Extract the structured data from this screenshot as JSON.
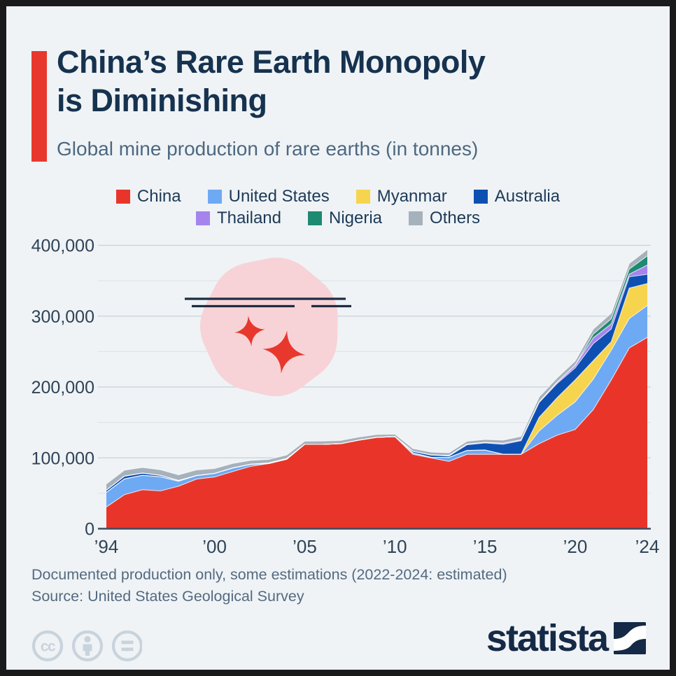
{
  "header": {
    "title_line1": "China’s Rare Earth Monopoly",
    "title_line2": "is Diminishing",
    "subtitle": "Global mine production of rare earths (in tonnes)",
    "accent_color": "#e8382d"
  },
  "legend": {
    "row_break": 4
  },
  "chart_data": {
    "type": "area",
    "stacked": true,
    "title": "Global mine production of rare earths (in tonnes)",
    "unit": "tonnes",
    "ylim": [
      0,
      400000
    ],
    "grid": "horizontal, minor lines every 50,000",
    "legend_position": "top-center, two rows",
    "years": [
      1994,
      1995,
      1996,
      1997,
      1998,
      1999,
      2000,
      2001,
      2002,
      2003,
      2004,
      2005,
      2006,
      2007,
      2008,
      2009,
      2010,
      2011,
      2012,
      2013,
      2014,
      2015,
      2016,
      2017,
      2018,
      2019,
      2020,
      2021,
      2022,
      2023,
      2024
    ],
    "series": [
      {
        "name": "China",
        "color": "#e93529",
        "values": [
          30600,
          48000,
          55000,
          53300,
          60000,
          70000,
          73000,
          80600,
          88000,
          92000,
          98000,
          119000,
          119000,
          120000,
          125000,
          129000,
          130000,
          105000,
          100000,
          95000,
          105000,
          105000,
          105000,
          105000,
          120000,
          132000,
          140000,
          168000,
          210000,
          255000,
          270000
        ]
      },
      {
        "name": "United States",
        "color": "#6ea9f3",
        "values": [
          20700,
          22200,
          20400,
          20000,
          7000,
          5000,
          5000,
          5000,
          3000,
          0,
          0,
          0,
          0,
          0,
          0,
          0,
          0,
          2000,
          800,
          5500,
          5400,
          5900,
          0,
          0,
          18000,
          28000,
          39000,
          43000,
          42000,
          41600,
          45000
        ]
      },
      {
        "name": "Myanmar",
        "color": "#f6d44e",
        "values": [
          0,
          0,
          0,
          0,
          0,
          0,
          0,
          0,
          0,
          0,
          0,
          0,
          0,
          0,
          0,
          0,
          0,
          0,
          0,
          0,
          0,
          100,
          0,
          100,
          19000,
          25000,
          31000,
          26000,
          12000,
          43000,
          31000
        ]
      },
      {
        "name": "Australia",
        "color": "#0d50b2",
        "values": [
          3000,
          4000,
          3000,
          2000,
          1000,
          0,
          0,
          0,
          0,
          0,
          0,
          0,
          0,
          0,
          0,
          0,
          0,
          2200,
          3200,
          2000,
          8000,
          10000,
          14000,
          19000,
          21000,
          20000,
          17000,
          24000,
          18000,
          16000,
          13000
        ]
      },
      {
        "name": "Thailand",
        "color": "#a584ee",
        "values": [
          0,
          0,
          0,
          0,
          0,
          0,
          0,
          0,
          0,
          800,
          1100,
          0,
          0,
          0,
          0,
          0,
          0,
          0,
          100,
          800,
          1100,
          800,
          1600,
          1300,
          1000,
          1900,
          3600,
          8200,
          7100,
          3600,
          13000
        ]
      },
      {
        "name": "Nigeria",
        "color": "#1d8a72",
        "values": [
          0,
          0,
          0,
          0,
          0,
          0,
          0,
          0,
          0,
          0,
          0,
          0,
          0,
          0,
          0,
          0,
          0,
          0,
          0,
          0,
          0,
          0,
          0,
          0,
          0,
          0,
          0,
          5400,
          7200,
          7200,
          13000
        ]
      },
      {
        "name": "Others",
        "color": "#a6b2bb",
        "values": [
          9000,
          8500,
          8000,
          8000,
          8000,
          8000,
          7000,
          6500,
          5500,
          5000,
          5000,
          4600,
          4800,
          4600,
          4500,
          4000,
          3500,
          4000,
          4000,
          4000,
          4000,
          4200,
          4400,
          5000,
          7000,
          6000,
          6000,
          7000,
          8000,
          8000,
          9000
        ]
      }
    ],
    "y_ticks": [
      {
        "value": 0,
        "label": "0"
      },
      {
        "value": 100000,
        "label": "100,000"
      },
      {
        "value": 200000,
        "label": "200,000"
      },
      {
        "value": 300000,
        "label": "300,000"
      },
      {
        "value": 400000,
        "label": "400,000"
      }
    ],
    "x_ticks": [
      {
        "year": 1994,
        "label": "’94"
      },
      {
        "year": 2000,
        "label": "’00"
      },
      {
        "year": 2005,
        "label": "’05"
      },
      {
        "year": 2010,
        "label": "’10"
      },
      {
        "year": 2015,
        "label": "’15"
      },
      {
        "year": 2020,
        "label": "’20"
      },
      {
        "year": 2024,
        "label": "’24"
      }
    ]
  },
  "decor": {
    "description": "pink gem blob with two red sparkles and two navy strike lines",
    "blob_color": "#f7d3d7",
    "sparkle_color": "#e8382d",
    "line_color": "#1f2d41"
  },
  "footer": {
    "note": "Documented production only, some estimations (2022-2024: estimated)",
    "source": "Source: United States Geological Survey",
    "brand": "statista"
  },
  "icons": [
    "cc-icon",
    "attribution-icon",
    "equals-icon",
    "statista-mark-icon"
  ],
  "theme": {
    "background": "#eff3f6",
    "frame": "#1a1a1a",
    "title_color": "#16324e",
    "subtitle_color": "#4d6880",
    "axis_text": "#2f4356",
    "axis_line": "#3d4d5f",
    "grid_major": "#c8d1d9",
    "grid_minor": "#dfe4ea",
    "footnote_color": "#546a80",
    "cc_icon_color": "#c9d3dc",
    "brand_navy": "#152a46"
  }
}
